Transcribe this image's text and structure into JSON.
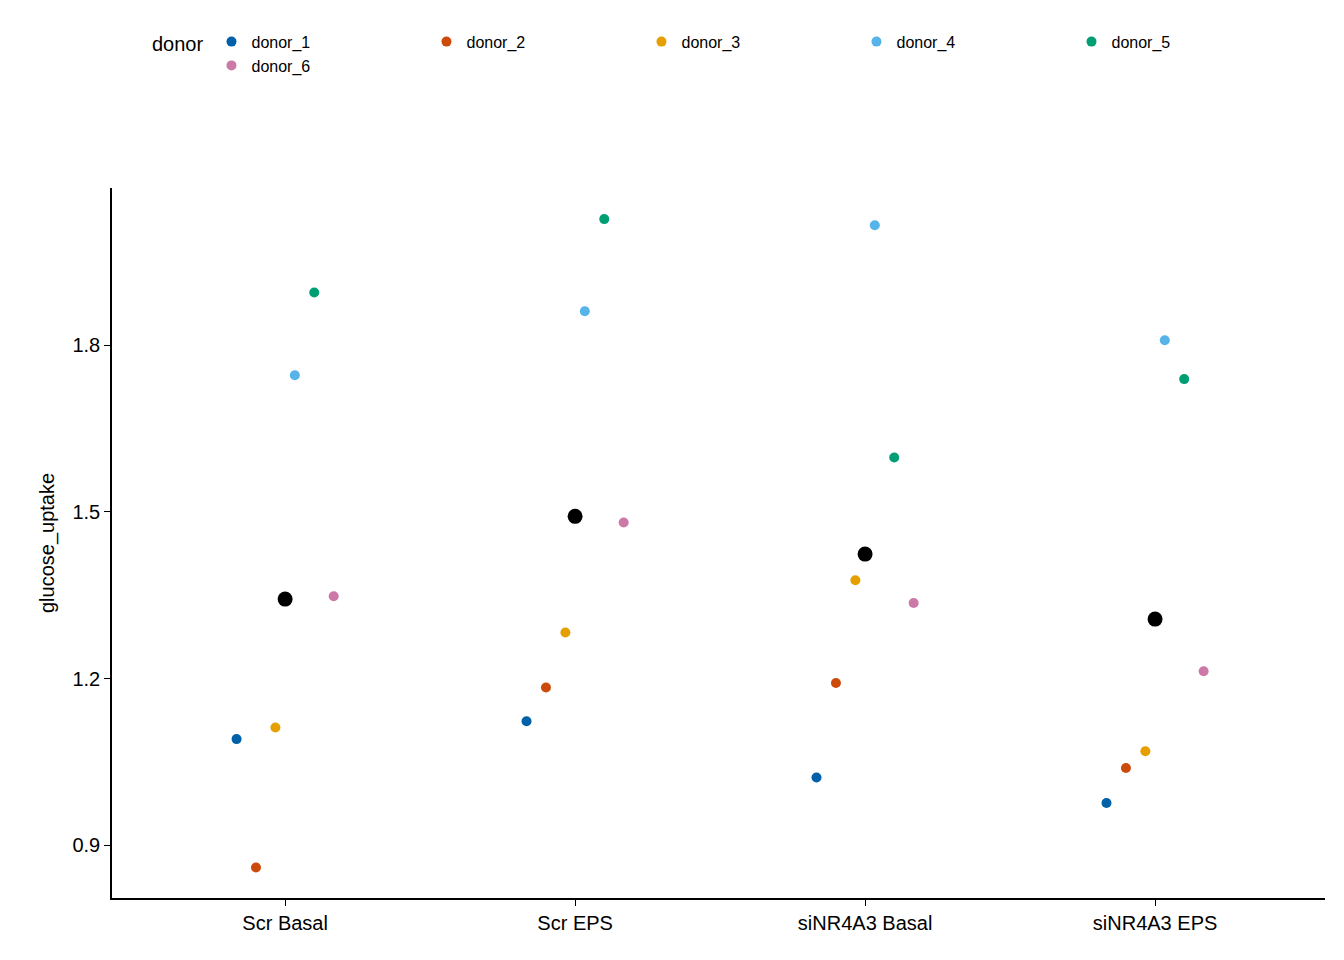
{
  "chart_data": {
    "type": "scatter",
    "y_label": "glucose_uptake",
    "legend_title": "donor",
    "legend": "top",
    "grid": false,
    "categories": [
      "Scr Basal",
      "Scr EPS",
      "siNR4A3 Basal",
      "siNR4A3 EPS"
    ],
    "ylim": [
      0.805,
      2.083
    ],
    "yticks": [
      0.9,
      1.2,
      1.5,
      1.8
    ],
    "series": [
      {
        "name": "donor_1",
        "color": "#0060A8",
        "marker": "circle",
        "values": [
          1.091,
          1.123,
          1.022,
          0.976
        ]
      },
      {
        "name": "donor_2",
        "color": "#CC4A0A",
        "marker": "circle",
        "values": [
          0.86,
          1.184,
          1.192,
          1.039
        ]
      },
      {
        "name": "donor_3",
        "color": "#E69F00",
        "marker": "circle",
        "values": [
          1.112,
          1.283,
          1.377,
          1.069
        ]
      },
      {
        "name": "donor_4",
        "color": "#56B4E9",
        "marker": "circle",
        "values": [
          1.746,
          1.861,
          2.016,
          1.809
        ]
      },
      {
        "name": "donor_5",
        "color": "#009E73",
        "marker": "circle",
        "values": [
          1.895,
          2.027,
          1.598,
          1.739
        ]
      },
      {
        "name": "donor_6",
        "color": "#CC79A7",
        "marker": "circle",
        "values": [
          1.348,
          1.481,
          1.336,
          1.213
        ]
      },
      {
        "color": "#000000",
        "marker": "large",
        "values": [
          1.343,
          1.492,
          1.424,
          1.307
        ]
      }
    ]
  }
}
